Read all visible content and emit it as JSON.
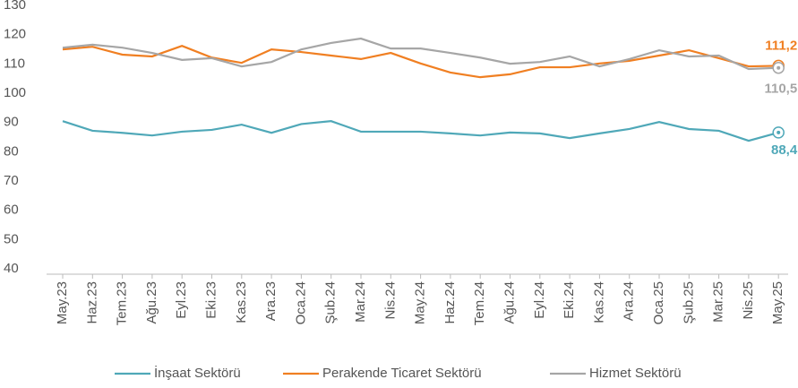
{
  "chart_data": {
    "type": "line",
    "categories": [
      "May.23",
      "Haz.23",
      "Tem.23",
      "Ağu.23",
      "Eyl.23",
      "Eki.23",
      "Kas.23",
      "Ara.23",
      "Oca.24",
      "Şub.24",
      "Mar.24",
      "Nis.24",
      "May.24",
      "Haz.24",
      "Tem.24",
      "Ağu.24",
      "Eyl.24",
      "Eki.24",
      "Kas.24",
      "Ara.24",
      "Oca.25",
      "Şub.25",
      "Mar.25",
      "Nis.25",
      "May.25"
    ],
    "series": [
      {
        "name": "İnşaat Sektörü",
        "color": "#4fa8b8",
        "values": [
          92.3,
          89,
          88.3,
          87.4,
          88.7,
          89.3,
          91.1,
          88.3,
          91.3,
          92.3,
          88.7,
          88.7,
          88.7,
          88.1,
          87.4,
          88.4,
          88.1,
          86.5,
          88.1,
          89.6,
          92,
          89.6,
          89,
          85.6,
          88.4
        ],
        "value_labels": [
          null,
          null,
          null,
          null,
          null,
          null,
          null,
          null,
          null,
          null,
          null,
          null,
          null,
          null,
          null,
          null,
          null,
          null,
          null,
          null,
          null,
          null,
          null,
          null,
          "88,4"
        ]
      },
      {
        "name": "Perakende Ticaret Sektörü",
        "color": "#f07f22",
        "values": [
          116.8,
          117.7,
          115,
          114.4,
          118,
          114,
          112.2,
          116.8,
          115.9,
          114.7,
          113.5,
          115.6,
          112,
          108.9,
          107.3,
          108.3,
          110.7,
          110.7,
          112,
          112.9,
          114.7,
          116.5,
          113.8,
          111,
          111.2
        ],
        "value_labels": [
          null,
          null,
          null,
          null,
          null,
          null,
          null,
          null,
          null,
          null,
          null,
          null,
          null,
          null,
          null,
          null,
          null,
          null,
          null,
          null,
          null,
          null,
          null,
          null,
          "111,2"
        ]
      },
      {
        "name": "Hizmet Sektörü",
        "color": "#a6a6a6",
        "values": [
          117.4,
          118.4,
          117.4,
          115.6,
          113.2,
          113.8,
          111,
          112.5,
          116.8,
          119,
          120.5,
          117.1,
          117.1,
          115.6,
          114,
          111.9,
          112.5,
          114.4,
          111,
          113.5,
          116.5,
          114.4,
          114.7,
          110.1,
          110.5
        ],
        "value_labels": [
          null,
          null,
          null,
          null,
          null,
          null,
          null,
          null,
          null,
          null,
          null,
          null,
          null,
          null,
          null,
          null,
          null,
          null,
          null,
          null,
          null,
          null,
          null,
          null,
          "110,5"
        ]
      }
    ],
    "ylim": [
      40,
      130
    ],
    "yticks": [
      40,
      50,
      60,
      70,
      80,
      90,
      100,
      110,
      120,
      130
    ]
  }
}
